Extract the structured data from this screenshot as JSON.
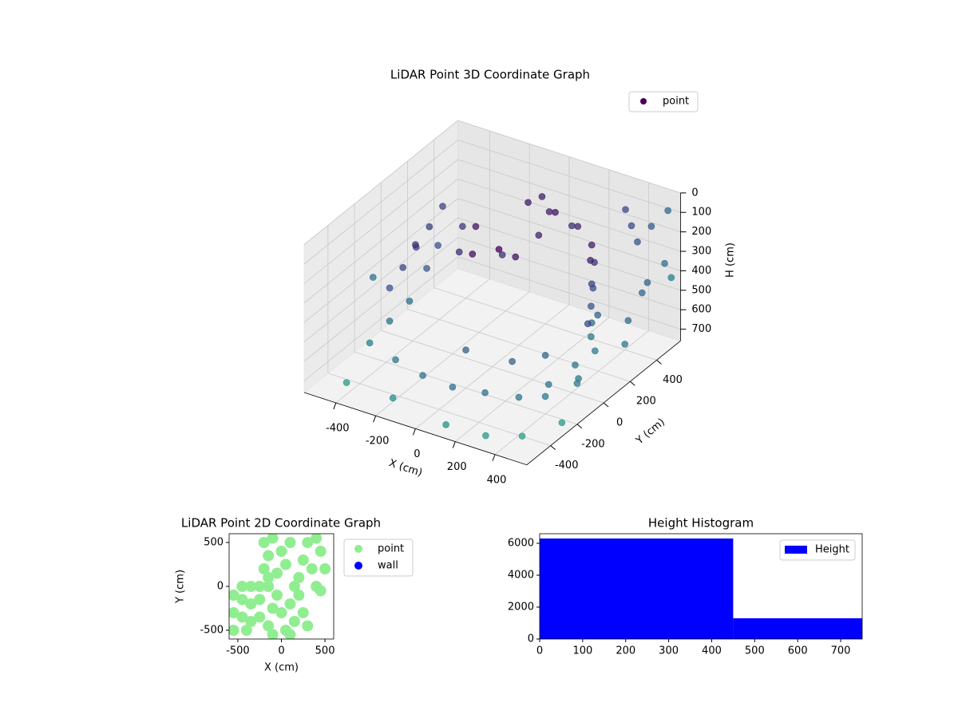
{
  "chart_data": [
    {
      "type": "scatter3d",
      "title": "LiDAR Point 3D Coordinate Graph",
      "xlabel": "X (cm)",
      "ylabel": "Y (cm)",
      "zlabel": "H (cm)",
      "colormap": "viridis",
      "legend": "upper right",
      "z_inverted": true,
      "xlim": [
        -560,
        560
      ],
      "ylim": [
        -580,
        580
      ],
      "zlim": [
        0,
        760
      ],
      "xticks": [
        -400,
        -200,
        0,
        200,
        400
      ],
      "yticks": [
        -400,
        -200,
        0,
        200,
        400
      ],
      "zticks": [
        0,
        100,
        200,
        300,
        400,
        500,
        600,
        700
      ],
      "series": [
        {
          "name": "point",
          "color": "#440154",
          "x": [
            -450,
            -450,
            -450,
            -450,
            -450,
            -440,
            -430,
            -420,
            -350,
            -300,
            -250,
            -200,
            -150,
            -100,
            -50,
            -100,
            -50,
            0,
            50,
            100,
            -20,
            150,
            300,
            300,
            300,
            310,
            300,
            290,
            320,
            280,
            330,
            350,
            400,
            450,
            -450,
            -300,
            -150,
            0,
            150,
            300,
            400,
            350,
            350,
            350,
            -450,
            -450,
            -100,
            100,
            200,
            550,
            500,
            600,
            580,
            550,
            600,
            500,
            550,
            450,
            300,
            100,
            -200,
            -400,
            -600,
            600,
            520,
            480,
            560
          ],
          "y": [
            300,
            200,
            100,
            0,
            -100,
            250,
            150,
            50,
            300,
            200,
            250,
            150,
            300,
            200,
            250,
            420,
            450,
            430,
            400,
            450,
            380,
            420,
            300,
            320,
            300,
            280,
            300,
            310,
            260,
            340,
            300,
            480,
            450,
            420,
            -250,
            -280,
            -300,
            -300,
            -280,
            -250,
            -200,
            -100,
            100,
            250,
            -100,
            50,
            -50,
            0,
            100,
            500,
            450,
            400,
            300,
            200,
            100,
            -100,
            -300,
            -450,
            -500,
            -500,
            -450,
            -500,
            0,
            450,
            350,
            0,
            -200
          ],
          "z": [
            250,
            300,
            350,
            400,
            450,
            420,
            480,
            300,
            320,
            380,
            260,
            330,
            400,
            300,
            350,
            180,
            150,
            200,
            170,
            250,
            300,
            220,
            200,
            300,
            400,
            500,
            600,
            680,
            250,
            450,
            550,
            100,
            150,
            200,
            650,
            670,
            690,
            700,
            690,
            680,
            670,
            680,
            690,
            700,
            620,
            600,
            680,
            700,
            690,
            50,
            120,
            250,
            300,
            450,
            500,
            600,
            700,
            720,
            740,
            750,
            740,
            700,
            500,
            350,
            400,
            380,
            550
          ]
        }
      ]
    },
    {
      "type": "scatter",
      "title": "LiDAR Point 2D Coordinate Graph",
      "xlabel": "X (cm)",
      "ylabel": "Y (cm)",
      "legend": "outside right",
      "xlim": [
        -600,
        600
      ],
      "ylim": [
        -600,
        600
      ],
      "xticks": [
        -500,
        0,
        500
      ],
      "yticks": [
        -500,
        0,
        500
      ],
      "series": [
        {
          "name": "point",
          "color": "#90ee90",
          "x": [
            -450,
            -350,
            -250,
            -150,
            -550,
            -450,
            -350,
            -250,
            -550,
            -450,
            -350,
            -250,
            -550,
            -400,
            -150,
            -100,
            -50,
            0,
            50,
            100,
            150,
            200,
            250,
            200,
            250,
            300,
            350,
            400,
            450,
            400,
            -200,
            -150,
            -200,
            -150,
            -100,
            0,
            50,
            100,
            150,
            -50,
            300,
            100,
            500,
            450,
            -100
          ],
          "y": [
            0,
            0,
            0,
            0,
            -100,
            -150,
            -200,
            -150,
            -300,
            -350,
            -400,
            -350,
            -500,
            -500,
            -450,
            -250,
            -100,
            -300,
            -500,
            -200,
            -400,
            -100,
            -300,
            100,
            300,
            500,
            200,
            0,
            400,
            550,
            500,
            350,
            200,
            100,
            550,
            400,
            250,
            500,
            0,
            150,
            -450,
            -550,
            200,
            -50,
            -550
          ]
        },
        {
          "name": "wall",
          "color": "#0000ff",
          "x": [],
          "y": []
        }
      ]
    },
    {
      "type": "histogram",
      "title": "Height Histogram",
      "legend": "upper right",
      "xlim": [
        0,
        750
      ],
      "ylim": [
        0,
        6600
      ],
      "xticks": [
        0,
        100,
        200,
        300,
        400,
        500,
        600,
        700
      ],
      "yticks": [
        0,
        2000,
        4000,
        6000
      ],
      "bins": [
        0,
        450,
        750
      ],
      "series": [
        {
          "name": "Height",
          "color": "#0000ff",
          "values": [
            6300,
            1300
          ]
        }
      ]
    }
  ]
}
